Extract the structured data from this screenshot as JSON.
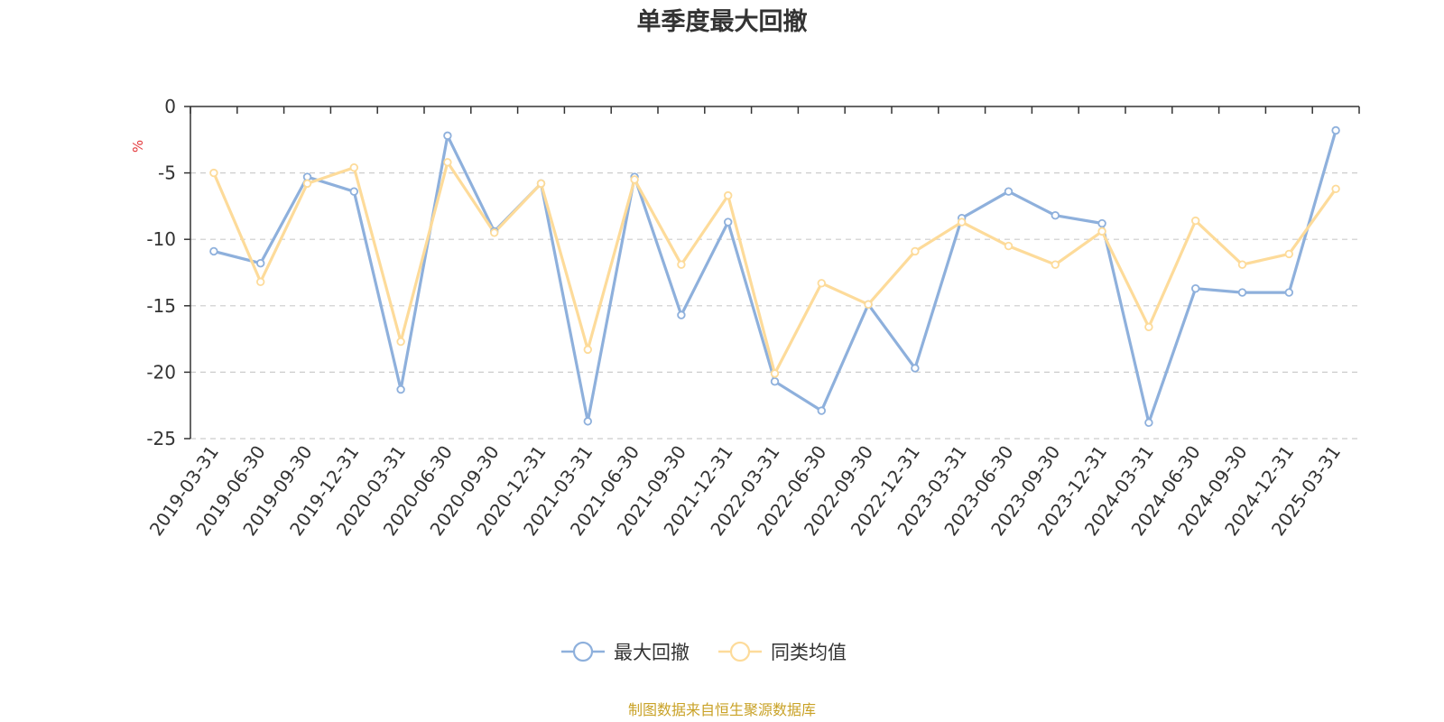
{
  "chart_data": {
    "type": "line",
    "title": "单季度最大回撤",
    "ylabel": "%",
    "ylim": [
      -25,
      0
    ],
    "yticks": [
      0,
      -5,
      -10,
      -15,
      -20,
      -25
    ],
    "grid": "horizontal-dashed",
    "legend_position": "bottom-center",
    "x": [
      "2019-03-31",
      "2019-06-30",
      "2019-09-30",
      "2019-12-31",
      "2020-03-31",
      "2020-06-30",
      "2020-09-30",
      "2020-12-31",
      "2021-03-31",
      "2021-06-30",
      "2021-09-30",
      "2021-12-31",
      "2022-03-31",
      "2022-06-30",
      "2022-09-30",
      "2022-12-31",
      "2023-03-31",
      "2023-06-30",
      "2023-09-30",
      "2023-12-31",
      "2024-03-31",
      "2024-06-30",
      "2024-09-30",
      "2024-12-31",
      "2025-03-31"
    ],
    "series": [
      {
        "name": "最大回撤",
        "color": "#8eb0dc",
        "values": [
          -10.9,
          -11.8,
          -5.3,
          -6.4,
          -21.3,
          -2.2,
          -9.4,
          -5.8,
          -23.7,
          -5.3,
          -15.7,
          -8.7,
          -20.7,
          -22.9,
          -14.9,
          -19.7,
          -8.4,
          -6.4,
          -8.2,
          -8.8,
          -23.8,
          -13.7,
          -14.0,
          -14.0,
          -1.8
        ]
      },
      {
        "name": "同类均值",
        "color": "#fddb9a",
        "values": [
          -5.0,
          -13.2,
          -5.8,
          -4.6,
          -17.7,
          -4.2,
          -9.5,
          -5.8,
          -18.3,
          -5.5,
          -11.9,
          -6.7,
          -20.1,
          -13.3,
          -14.9,
          -10.9,
          -8.7,
          -10.5,
          -11.9,
          -9.4,
          -16.6,
          -8.6,
          -11.9,
          -11.1,
          -6.2
        ]
      }
    ],
    "source": "制图数据来自恒生聚源数据库"
  }
}
